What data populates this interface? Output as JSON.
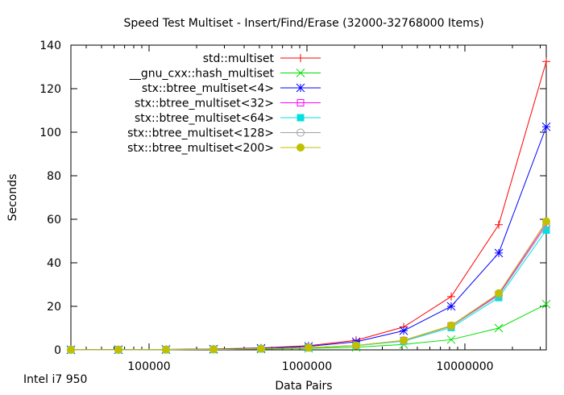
{
  "chart_data": {
    "type": "line",
    "title": "Speed Test Multiset - Insert/Find/Erase (32000-32768000 Items)",
    "xlabel": "Data Pairs",
    "ylabel": "Seconds",
    "footer": "Intel i7 950",
    "x_scale": "log",
    "xlim": [
      32000,
      32768000
    ],
    "ylim": [
      0,
      140
    ],
    "x_ticks": [
      100000,
      1000000,
      10000000
    ],
    "x_tick_labels": [
      "100000",
      "1000000",
      "10000000"
    ],
    "y_ticks": [
      0,
      20,
      40,
      60,
      80,
      100,
      120,
      140
    ],
    "y_tick_labels": [
      "0",
      "20",
      "40",
      "60",
      "80",
      "100",
      "120",
      "140"
    ],
    "legend_position": "top-left",
    "x": [
      32000,
      64000,
      128000,
      256000,
      512000,
      1024000,
      2048000,
      4096000,
      8192000,
      16384000,
      32768000
    ],
    "series": [
      {
        "name": "std::multiset",
        "color": "#ff0000",
        "marker": "plus",
        "values": [
          0.05,
          0.1,
          0.2,
          0.4,
          0.9,
          1.9,
          4.4,
          10.5,
          24.5,
          57.5,
          132.5
        ]
      },
      {
        "name": "__gnu_cxx::hash_multiset",
        "color": "#00e000",
        "marker": "cross",
        "values": [
          0.02,
          0.05,
          0.1,
          0.2,
          0.35,
          0.7,
          1.2,
          2.5,
          4.7,
          10.0,
          21.0
        ]
      },
      {
        "name": "stx::btree_multiset<4>",
        "color": "#0000ff",
        "marker": "star",
        "values": [
          0.04,
          0.08,
          0.17,
          0.35,
          0.75,
          1.6,
          3.7,
          8.8,
          20.0,
          44.5,
          102.5
        ]
      },
      {
        "name": "stx::btree_multiset<32>",
        "color": "#ff00ff",
        "marker": "square-open",
        "values": [
          0.03,
          0.06,
          0.12,
          0.25,
          0.5,
          1.0,
          2.0,
          4.3,
          11.0,
          25.5,
          58.0
        ]
      },
      {
        "name": "stx::btree_multiset<64>",
        "color": "#00e0e0",
        "marker": "square-filled",
        "values": [
          0.03,
          0.06,
          0.12,
          0.25,
          0.5,
          1.0,
          1.9,
          4.0,
          10.2,
          24.0,
          55.0
        ]
      },
      {
        "name": "stx::btree_multiset<128>",
        "color": "#a0a0a0",
        "marker": "circle-open",
        "values": [
          0.03,
          0.06,
          0.12,
          0.25,
          0.5,
          1.0,
          2.0,
          4.2,
          10.8,
          25.0,
          57.0
        ]
      },
      {
        "name": "stx::btree_multiset<200>",
        "color": "#c0c000",
        "marker": "circle-filled",
        "values": [
          0.03,
          0.06,
          0.12,
          0.25,
          0.5,
          1.0,
          2.0,
          4.4,
          11.2,
          26.0,
          59.0
        ]
      }
    ]
  }
}
